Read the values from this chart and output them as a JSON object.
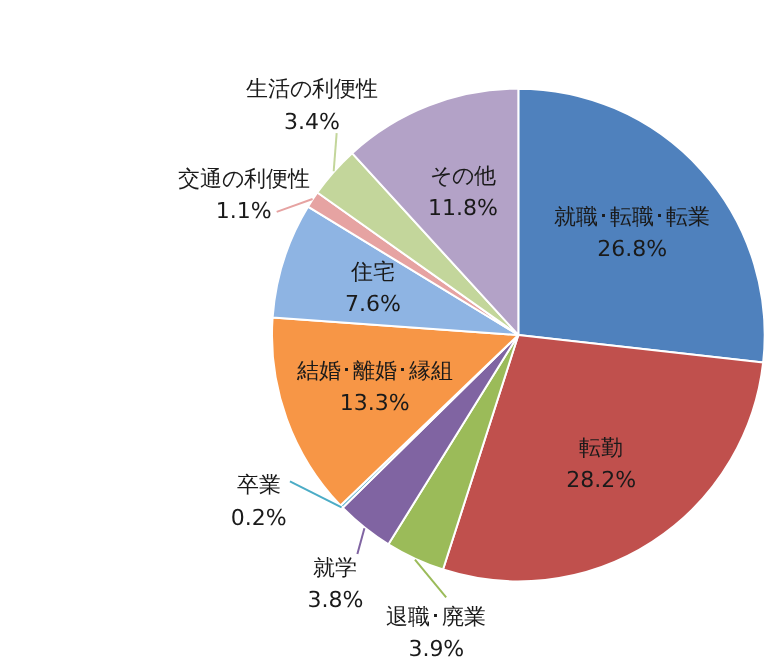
{
  "chart_data": {
    "type": "pie",
    "categories": [
      "就職･転職･転業",
      "転勤",
      "退職･廃業",
      "就学",
      "卒業",
      "結婚･離婚･縁組",
      "住宅",
      "交通の利便性",
      "生活の利便性",
      "その他"
    ],
    "values": [
      26.8,
      28.2,
      3.9,
      3.8,
      0.2,
      13.3,
      7.6,
      1.1,
      3.4,
      11.8
    ],
    "value_labels": [
      "26.8%",
      "28.2%",
      "3.9%",
      "3.8%",
      "0.2%",
      "13.3%",
      "7.6%",
      "1.1%",
      "3.4%",
      "11.8%"
    ],
    "colors": [
      "#4f81bd",
      "#c0504d",
      "#9bbb59",
      "#8064a2",
      "#4bacc6",
      "#f79646",
      "#8eb4e3",
      "#e6a3a2",
      "#c3d69b",
      "#b3a2c7"
    ],
    "legend": false
  }
}
